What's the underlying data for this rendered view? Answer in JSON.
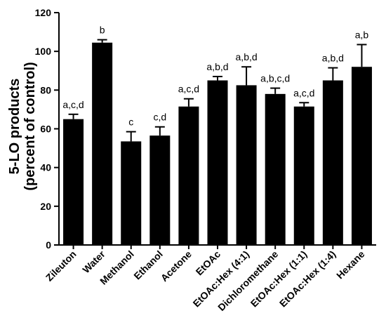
{
  "chart_data": {
    "type": "bar",
    "ylabel_line1": "5-LO products",
    "ylabel_line2": "(percent of control)",
    "xlabel": "",
    "ylim": [
      0,
      120
    ],
    "yticks": [
      0,
      20,
      40,
      60,
      80,
      100,
      120
    ],
    "categories": [
      "Zileuton",
      "Water",
      "Methanol",
      "Ethanol",
      "Acetone",
      "EtOAc",
      "EtOAc:Hex (4:1)",
      "Dichloromethane",
      "EtOAc:Hex (1:1)",
      "EtOAc:Hex (1:4)",
      "Hexane"
    ],
    "values": [
      65,
      104.5,
      53.5,
      56.5,
      71.5,
      85,
      82.5,
      78,
      71.5,
      85,
      92
    ],
    "errors": [
      2.5,
      1.5,
      5,
      4.5,
      4,
      2,
      9.5,
      3,
      2,
      6.5,
      11.5
    ],
    "significance": [
      "a,c,d",
      "b",
      "c",
      "c,d",
      "a,c,d",
      "a,b,d",
      "a,b,d",
      "a,b,c,d",
      "a,c,d",
      "a,b,d",
      "a,b"
    ],
    "bar_color": "#000000"
  }
}
